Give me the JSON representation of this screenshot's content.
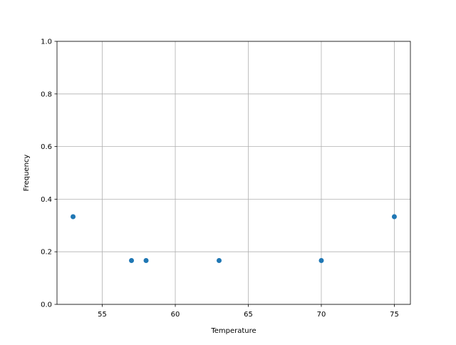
{
  "chart_data": {
    "type": "scatter",
    "title": "",
    "xlabel": "Temperature",
    "ylabel": "Frequency",
    "x": [
      53,
      57,
      58,
      63,
      70,
      75
    ],
    "y": [
      0.3333,
      0.1667,
      0.1667,
      0.1667,
      0.1667,
      0.3333
    ],
    "xlim": [
      51.9,
      76.1
    ],
    "ylim": [
      0,
      1.0
    ],
    "xticks": [
      55,
      60,
      65,
      70,
      75
    ],
    "xtick_labels": [
      "55",
      "60",
      "65",
      "70",
      "75"
    ],
    "yticks": [
      0,
      0.2,
      0.4,
      0.6,
      0.8,
      1.0
    ],
    "ytick_labels": [
      "0.0",
      "0.2",
      "0.4",
      "0.6",
      "0.8",
      "1.0"
    ],
    "grid": true,
    "legend": "none",
    "colors": {
      "points": "#1f77b4",
      "grid": "#b0b0b0",
      "axes": "#000000"
    }
  }
}
